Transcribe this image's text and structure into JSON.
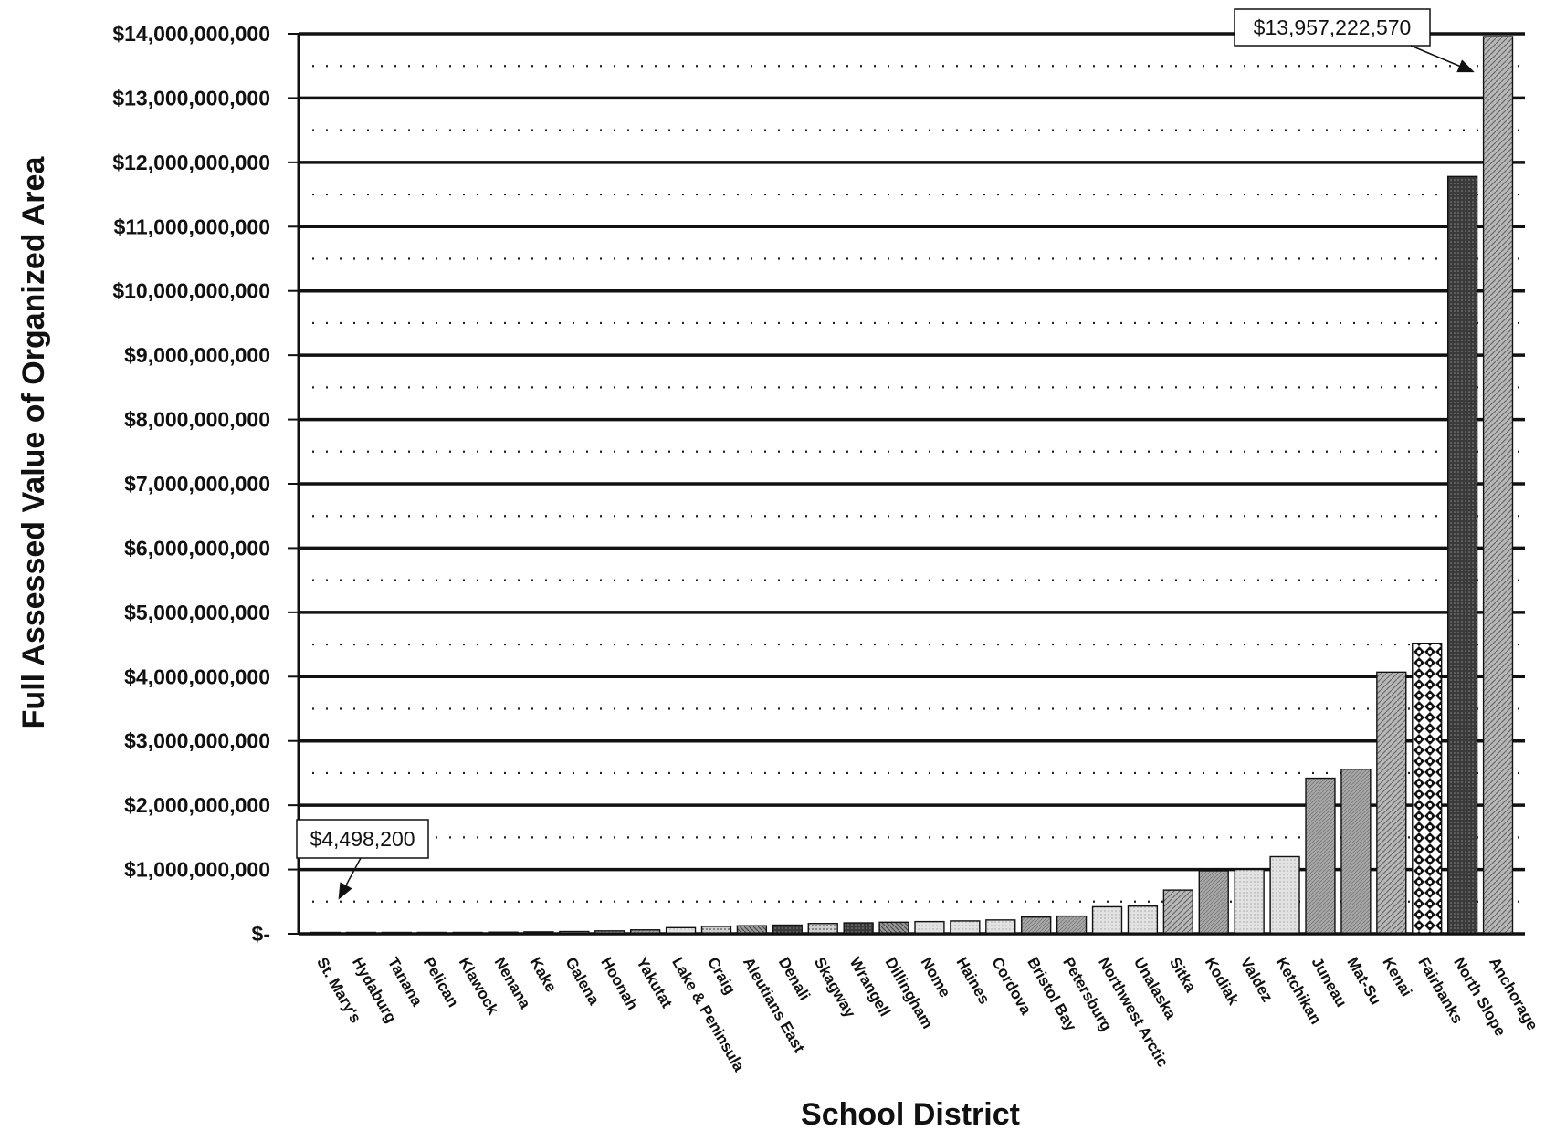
{
  "chart_data": {
    "type": "bar",
    "title": "",
    "xlabel": "School District",
    "ylabel": "Full Assessed Value of Organized Area",
    "ylim": [
      0,
      14000000000
    ],
    "y_ticks": [
      {
        "value": 0,
        "label": "$-"
      },
      {
        "value": 1000000000,
        "label": "$1,000,000,000"
      },
      {
        "value": 2000000000,
        "label": "$2,000,000,000"
      },
      {
        "value": 3000000000,
        "label": "$3,000,000,000"
      },
      {
        "value": 4000000000,
        "label": "$4,000,000,000"
      },
      {
        "value": 5000000000,
        "label": "$5,000,000,000"
      },
      {
        "value": 6000000000,
        "label": "$6,000,000,000"
      },
      {
        "value": 7000000000,
        "label": "$7,000,000,000"
      },
      {
        "value": 8000000000,
        "label": "$8,000,000,000"
      },
      {
        "value": 9000000000,
        "label": "$9,000,000,000"
      },
      {
        "value": 10000000000,
        "label": "$10,000,000,000"
      },
      {
        "value": 11000000000,
        "label": "$11,000,000,000"
      },
      {
        "value": 12000000000,
        "label": "$12,000,000,000"
      },
      {
        "value": 13000000000,
        "label": "$13,000,000,000"
      },
      {
        "value": 14000000000,
        "label": "$14,000,000,000"
      }
    ],
    "grid": "major solid, minor dotted",
    "categories": [
      "St. Mary's",
      "Hydaburg",
      "Tanana",
      "Pelican",
      "Klawock",
      "Nenana",
      "Kake",
      "Galena",
      "Hoonah",
      "Yakutat",
      "Lake & Peninsula",
      "Craig",
      "Aleutians East",
      "Denali",
      "Skagway",
      "Wrangell",
      "Dillingham",
      "Nome",
      "Haines",
      "Cordova",
      "Bristol Bay",
      "Petersburg",
      "Northwest Arctic",
      "Unalaska",
      "Sitka",
      "Kodiak",
      "Valdez",
      "Ketchikan",
      "Juneau",
      "Mat-Su",
      "Kenai",
      "Fairbanks",
      "North Slope",
      "Anchorage"
    ],
    "values": [
      4498200,
      10000000,
      12000000,
      15000000,
      20000000,
      25000000,
      30000000,
      35000000,
      45000000,
      60000000,
      95000000,
      115000000,
      125000000,
      135000000,
      160000000,
      170000000,
      180000000,
      190000000,
      200000000,
      215000000,
      260000000,
      275000000,
      420000000,
      430000000,
      680000000,
      980000000,
      1000000000,
      1200000000,
      2420000000,
      2560000000,
      4070000000,
      4520000000,
      11780000000,
      13957222570
    ],
    "annotations": [
      {
        "text": "$4,498,200",
        "target": "St. Mary's"
      },
      {
        "text": "$13,957,222,570",
        "target": "Anchorage"
      }
    ]
  }
}
